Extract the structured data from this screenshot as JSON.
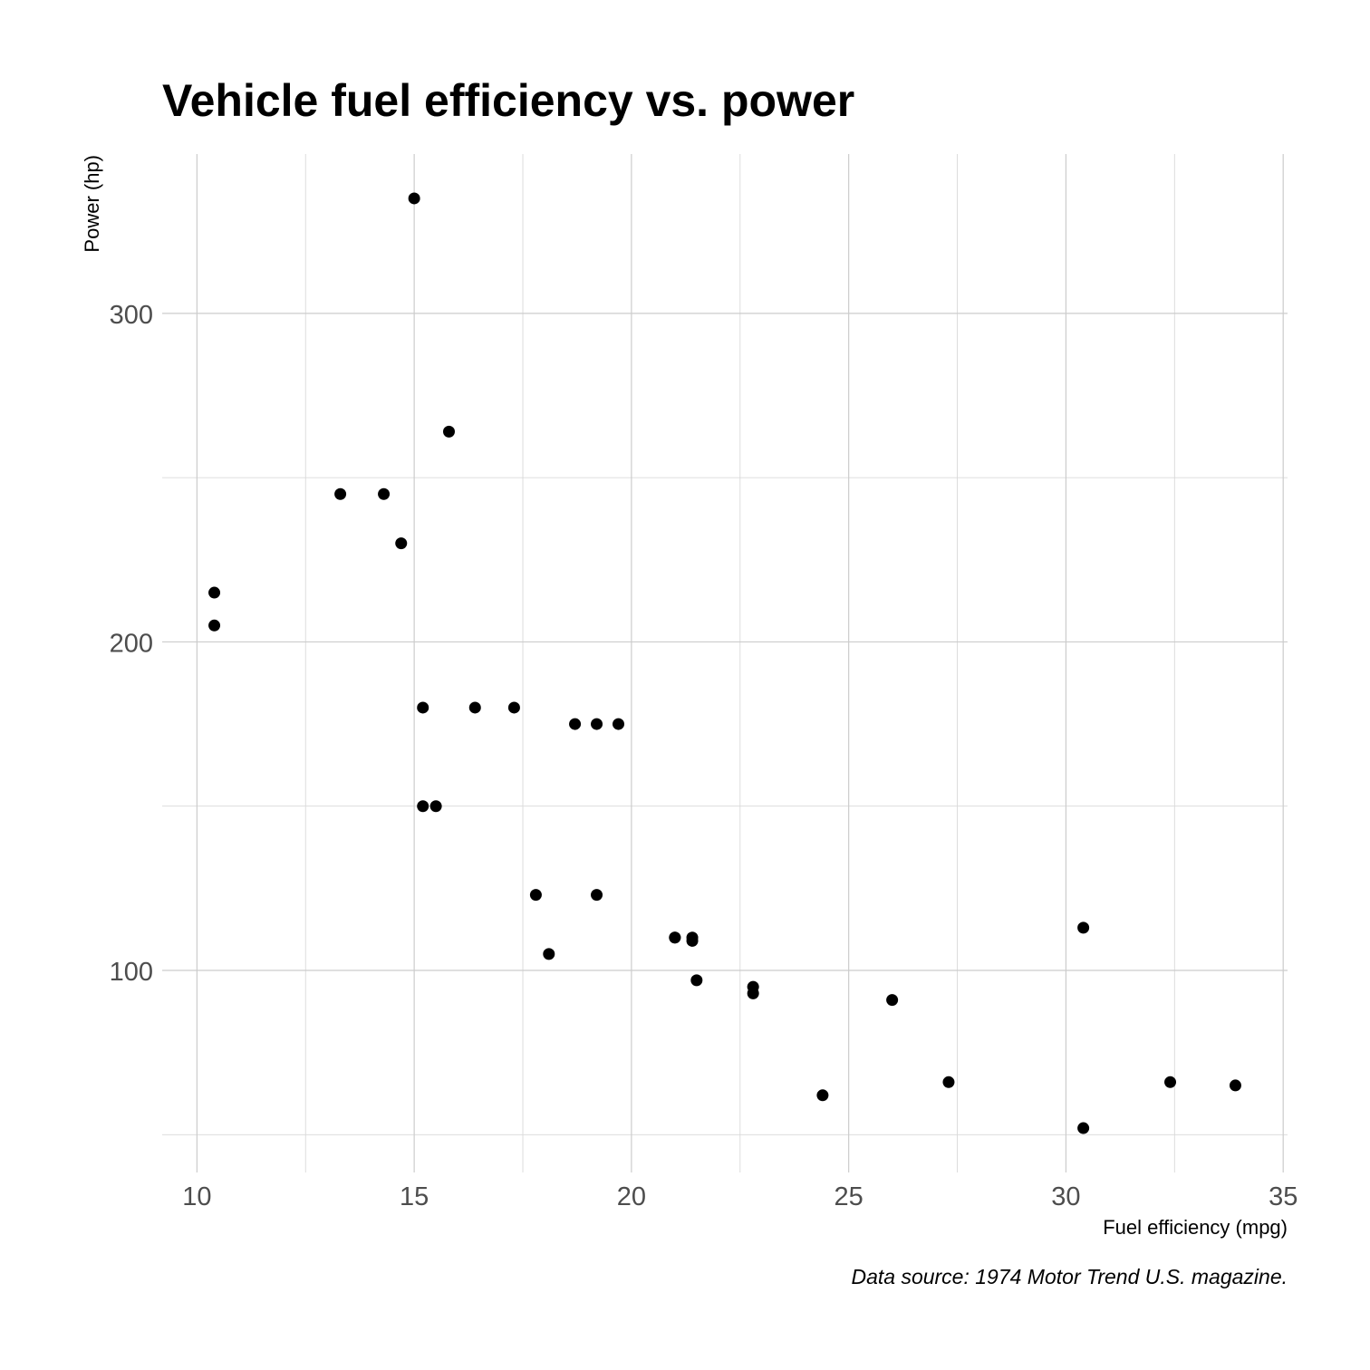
{
  "chart_data": {
    "type": "scatter",
    "title": "Vehicle fuel efficiency vs. power",
    "xlabel": "Fuel efficiency (mpg)",
    "ylabel": "Power (hp)",
    "caption": "Data source: 1974 Motor Trend U.S. magazine.",
    "xlim": [
      9.2,
      35.1
    ],
    "ylim": [
      38.5,
      348.5
    ],
    "x_ticks": [
      10,
      15,
      20,
      25,
      30,
      35
    ],
    "x_minor_ticks": [
      12.5,
      17.5,
      22.5,
      27.5,
      32.5
    ],
    "y_ticks": [
      100,
      200,
      300
    ],
    "y_minor_ticks": [
      50,
      150,
      250
    ],
    "grid": true,
    "point_color": "#000000",
    "points": [
      {
        "x": 21.0,
        "y": 110
      },
      {
        "x": 21.0,
        "y": 110
      },
      {
        "x": 22.8,
        "y": 93
      },
      {
        "x": 21.4,
        "y": 110
      },
      {
        "x": 18.7,
        "y": 175
      },
      {
        "x": 18.1,
        "y": 105
      },
      {
        "x": 14.3,
        "y": 245
      },
      {
        "x": 24.4,
        "y": 62
      },
      {
        "x": 22.8,
        "y": 95
      },
      {
        "x": 19.2,
        "y": 123
      },
      {
        "x": 17.8,
        "y": 123
      },
      {
        "x": 16.4,
        "y": 180
      },
      {
        "x": 17.3,
        "y": 180
      },
      {
        "x": 15.2,
        "y": 180
      },
      {
        "x": 10.4,
        "y": 205
      },
      {
        "x": 10.4,
        "y": 215
      },
      {
        "x": 14.7,
        "y": 230
      },
      {
        "x": 32.4,
        "y": 66
      },
      {
        "x": 30.4,
        "y": 52
      },
      {
        "x": 33.9,
        "y": 65
      },
      {
        "x": 21.5,
        "y": 97
      },
      {
        "x": 15.5,
        "y": 150
      },
      {
        "x": 15.2,
        "y": 150
      },
      {
        "x": 13.3,
        "y": 245
      },
      {
        "x": 19.2,
        "y": 175
      },
      {
        "x": 27.3,
        "y": 66
      },
      {
        "x": 26.0,
        "y": 91
      },
      {
        "x": 30.4,
        "y": 113
      },
      {
        "x": 15.8,
        "y": 264
      },
      {
        "x": 19.7,
        "y": 175
      },
      {
        "x": 15.0,
        "y": 335
      },
      {
        "x": 21.4,
        "y": 109
      }
    ]
  }
}
